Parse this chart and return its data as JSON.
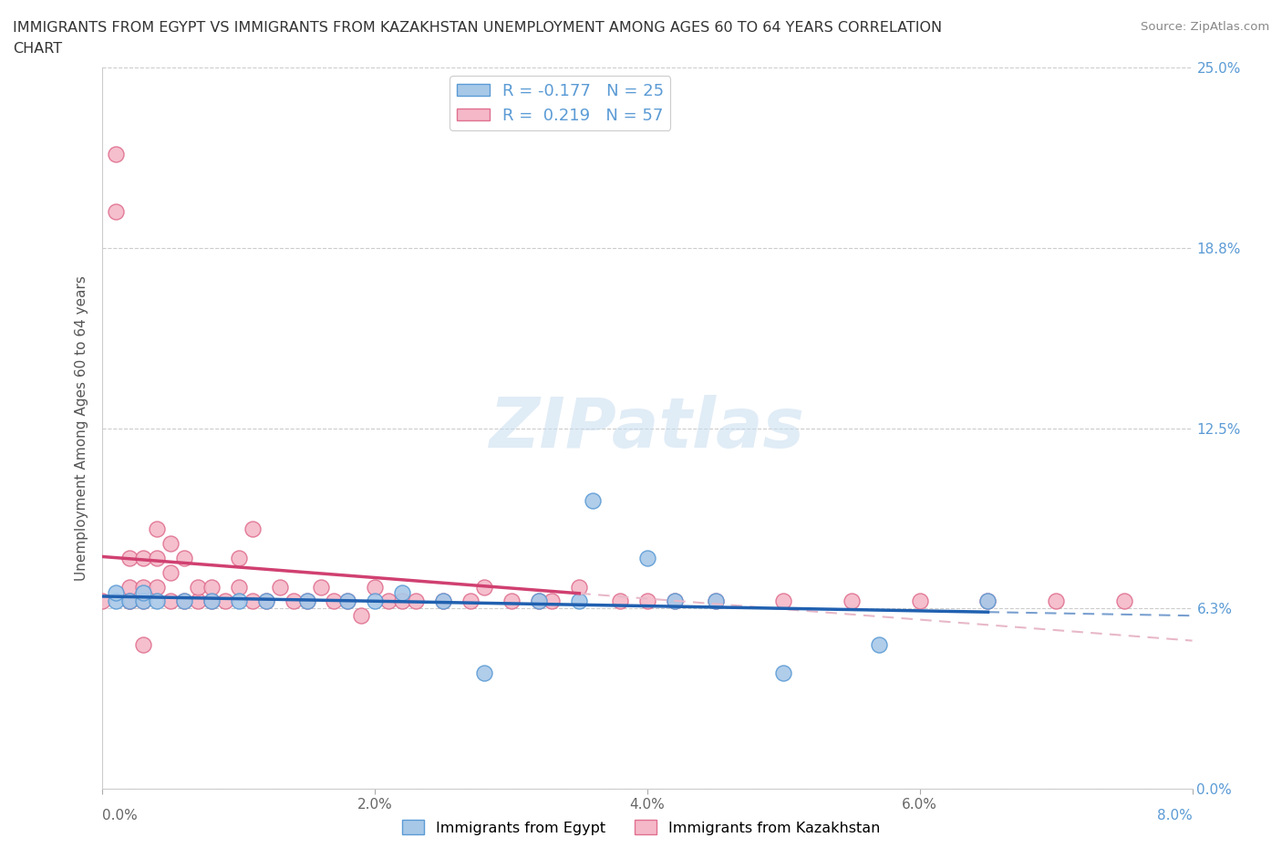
{
  "title_line1": "IMMIGRANTS FROM EGYPT VS IMMIGRANTS FROM KAZAKHSTAN UNEMPLOYMENT AMONG AGES 60 TO 64 YEARS CORRELATION",
  "title_line2": "CHART",
  "source": "Source: ZipAtlas.com",
  "ylabel": "Unemployment Among Ages 60 to 64 years",
  "xlim": [
    0.0,
    0.08
  ],
  "ylim": [
    0.0,
    0.25
  ],
  "yticks": [
    0.0,
    0.0625,
    0.125,
    0.1875,
    0.25
  ],
  "ytick_labels": [
    "0.0%",
    "6.3%",
    "12.5%",
    "18.8%",
    "25.0%"
  ],
  "xticks": [
    0.0,
    0.02,
    0.04,
    0.06,
    0.08
  ],
  "xtick_labels_inner": [
    "",
    "2.0%",
    "4.0%",
    "6.0%",
    ""
  ],
  "x_left_label": "0.0%",
  "x_right_label": "8.0%",
  "egypt_color": "#a8c8e8",
  "egypt_edge_color": "#5b9bd5",
  "kazakhstan_color": "#f4b8c8",
  "kazakhstan_edge_color": "#e07090",
  "egypt_R": -0.177,
  "egypt_N": 25,
  "kazakhstan_R": 0.219,
  "kazakhstan_N": 57,
  "egypt_line_color": "#2060b0",
  "kazakhstan_line_color": "#d04070",
  "kazakhstan_dash_color": "#e8b8c8",
  "tick_label_color": "#5b9bd5",
  "watermark": "ZIPatlas",
  "background_color": "#ffffff",
  "grid_color": "#cccccc",
  "egypt_x": [
    0.001,
    0.001,
    0.002,
    0.003,
    0.003,
    0.004,
    0.006,
    0.008,
    0.01,
    0.012,
    0.015,
    0.018,
    0.02,
    0.022,
    0.025,
    0.028,
    0.032,
    0.035,
    0.036,
    0.04,
    0.042,
    0.045,
    0.05,
    0.057,
    0.065
  ],
  "egypt_y": [
    0.065,
    0.068,
    0.065,
    0.065,
    0.068,
    0.065,
    0.065,
    0.065,
    0.065,
    0.065,
    0.065,
    0.065,
    0.065,
    0.068,
    0.065,
    0.04,
    0.065,
    0.065,
    0.1,
    0.08,
    0.065,
    0.065,
    0.04,
    0.05,
    0.065
  ],
  "kazakhstan_x": [
    0.0,
    0.001,
    0.001,
    0.002,
    0.002,
    0.002,
    0.002,
    0.003,
    0.003,
    0.003,
    0.003,
    0.004,
    0.004,
    0.004,
    0.005,
    0.005,
    0.005,
    0.006,
    0.006,
    0.007,
    0.007,
    0.008,
    0.008,
    0.009,
    0.01,
    0.01,
    0.011,
    0.011,
    0.012,
    0.013,
    0.014,
    0.015,
    0.016,
    0.017,
    0.018,
    0.019,
    0.02,
    0.021,
    0.022,
    0.023,
    0.025,
    0.027,
    0.028,
    0.03,
    0.032,
    0.033,
    0.035,
    0.038,
    0.04,
    0.042,
    0.045,
    0.05,
    0.055,
    0.06,
    0.065,
    0.07,
    0.075
  ],
  "kazakhstan_y": [
    0.065,
    0.2,
    0.22,
    0.065,
    0.07,
    0.08,
    0.065,
    0.05,
    0.065,
    0.07,
    0.08,
    0.07,
    0.08,
    0.09,
    0.065,
    0.075,
    0.085,
    0.065,
    0.08,
    0.065,
    0.07,
    0.065,
    0.07,
    0.065,
    0.07,
    0.08,
    0.065,
    0.09,
    0.065,
    0.07,
    0.065,
    0.065,
    0.07,
    0.065,
    0.065,
    0.06,
    0.07,
    0.065,
    0.065,
    0.065,
    0.065,
    0.065,
    0.07,
    0.065,
    0.065,
    0.065,
    0.07,
    0.065,
    0.065,
    0.065,
    0.065,
    0.065,
    0.065,
    0.065,
    0.065,
    0.065,
    0.065
  ]
}
